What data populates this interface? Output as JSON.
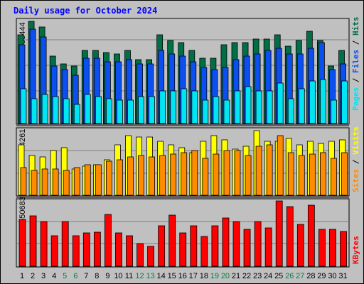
{
  "chart_data": {
    "type": "bar",
    "title": "Daily usage for October 2024",
    "categories": [
      "1",
      "2",
      "3",
      "4",
      "5",
      "6",
      "7",
      "8",
      "9",
      "10",
      "11",
      "12",
      "13",
      "14",
      "15",
      "16",
      "17",
      "18",
      "19",
      "20",
      "21",
      "22",
      "23",
      "24",
      "25",
      "26",
      "27",
      "28",
      "29",
      "30",
      "31"
    ],
    "weekend_days": [
      "5",
      "6",
      "12",
      "13",
      "19",
      "20",
      "26",
      "27"
    ],
    "panels": [
      {
        "name": "hits-files-pages",
        "y_max_label": "53444",
        "y_max": 53444,
        "side_labels": [
          "Pages",
          "Files",
          "Hits"
        ],
        "series": [
          {
            "name": "Hits",
            "color": "#006f45",
            "values": [
              46000,
              53000,
              50000,
              35000,
              31000,
              30000,
              38000,
              38000,
              37000,
              36000,
              38000,
              33000,
              33000,
              46000,
              43000,
              42000,
              38000,
              34000,
              34000,
              41000,
              42000,
              42000,
              44000,
              44000,
              46000,
              40000,
              43000,
              48000,
              43000,
              30000,
              38000
            ]
          },
          {
            "name": "Files",
            "color": "#0b4ff0",
            "values": [
              41000,
              49000,
              45000,
              30000,
              28000,
              25000,
              34000,
              34000,
              32000,
              32000,
              33000,
              31000,
              31000,
              38000,
              36000,
              35000,
              32000,
              29000,
              28000,
              29000,
              33000,
              35000,
              36000,
              38000,
              39000,
              36000,
              36000,
              39000,
              42000,
              28000,
              31000
            ]
          },
          {
            "name": "Pages",
            "color": "#00e4f3",
            "values": [
              18000,
              13000,
              15000,
              14000,
              13000,
              10000,
              15000,
              14000,
              13000,
              12000,
              12000,
              14000,
              14000,
              17000,
              17000,
              18000,
              17000,
              12000,
              14000,
              12000,
              17000,
              19000,
              17000,
              17000,
              21000,
              13000,
              18000,
              22000,
              23000,
              12000,
              22000
            ]
          }
        ]
      },
      {
        "name": "visits-sites",
        "y_max_label": "4261",
        "y_max": 4261,
        "side_labels": [
          "Sites",
          "Visits"
        ],
        "series": [
          {
            "name": "Visits",
            "color": "#ffff00",
            "values": [
              3300,
              2600,
              2500,
              2900,
              3100,
              1700,
              1900,
              2000,
              2300,
              3300,
              3900,
              3800,
              3800,
              3500,
              3300,
              3100,
              2800,
              3500,
              3900,
              3600,
              3000,
              3200,
              4200,
              3500,
              3500,
              3700,
              3300,
              3500,
              3400,
              3500,
              3600
            ]
          },
          {
            "name": "Sites",
            "color": "#ff8c00",
            "values": [
              1800,
              1600,
              1700,
              1700,
              1600,
              1800,
              2000,
              2000,
              2200,
              2300,
              2500,
              2600,
              2500,
              2600,
              2700,
              2800,
              2900,
              2400,
              2700,
              2900,
              2900,
              2600,
              3200,
              3300,
              3900,
              2800,
              2600,
              2700,
              2800,
              2400,
              2800
            ]
          }
        ]
      },
      {
        "name": "kbytes",
        "y_max_label": "3650683",
        "y_max": 3650683,
        "side_labels": [
          "KBytes"
        ],
        "series": [
          {
            "name": "KBytes",
            "color": "#ff0000",
            "values": [
              2600000,
              2800000,
              2500000,
              1700000,
              2500000,
              1700000,
              1850000,
              1900000,
              2900000,
              1850000,
              1700000,
              1250000,
              1100000,
              2250000,
              2850000,
              1850000,
              2250000,
              1650000,
              2250000,
              2700000,
              2500000,
              2050000,
              2500000,
              2150000,
              3650683,
              3350000,
              2350000,
              3400000,
              2050000,
              2050000,
              1950000
            ]
          }
        ]
      }
    ],
    "colors": {
      "background": "#c0c0c0",
      "title": "#0000ff",
      "weekday_label": "#000000",
      "weekend_label": "#008040",
      "gridline": "#7f7f7f",
      "separator": "#000000"
    }
  }
}
